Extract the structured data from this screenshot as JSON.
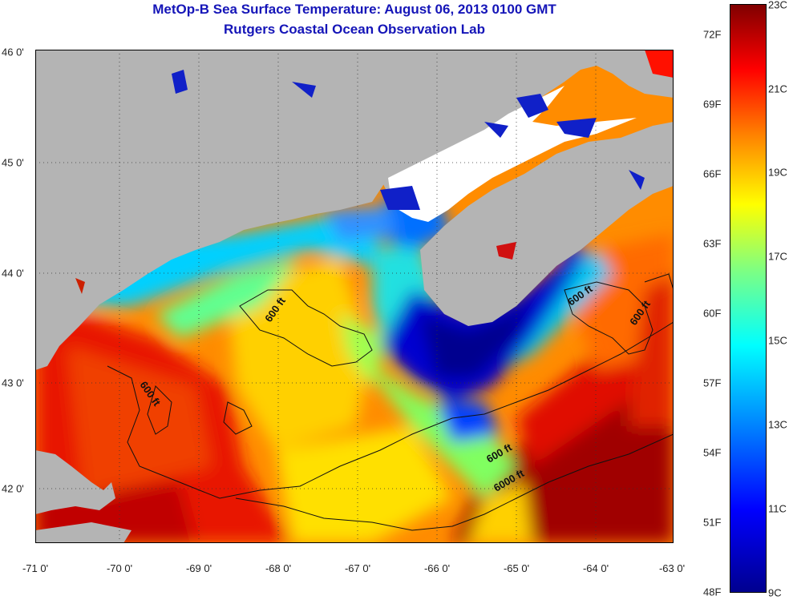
{
  "title": "MetOp-B Sea Surface Temperature:  August 06, 2013 0100 GMT",
  "subtitle": "Rutgers Coastal Ocean Observation Lab",
  "map": {
    "lon_range": [
      -71,
      -63
    ],
    "lat_range": [
      41.5,
      46
    ],
    "x_ticks": [
      "-71 0'",
      "-70 0'",
      "-69 0'",
      "-68 0'",
      "-67 0'",
      "-66 0'",
      "-65 0'",
      "-64 0'",
      "-63 0'"
    ],
    "y_ticks": [
      "46 0'",
      "45 0'",
      "44 0'",
      "43 0'",
      "42 0'"
    ],
    "contour_labels": [
      "600 ft",
      "600 ft",
      "600 ft",
      "600 ft",
      "600 ft",
      "6000 ft"
    ],
    "land_color": "#b4b4b4",
    "cloud_color": "#ffffff"
  },
  "colorbar": {
    "f_ticks": [
      "72F",
      "69F",
      "66F",
      "63F",
      "60F",
      "57F",
      "54F",
      "51F",
      "48F"
    ],
    "c_ticks": [
      "23C",
      "21C",
      "19C",
      "17C",
      "15C",
      "13C",
      "11C",
      "9C"
    ],
    "c_range": [
      9,
      23
    ],
    "colors": [
      "#00008f",
      "#0000ff",
      "#0080ff",
      "#00ffff",
      "#80ff80",
      "#ffff00",
      "#ff8000",
      "#ff0000",
      "#800000"
    ]
  }
}
